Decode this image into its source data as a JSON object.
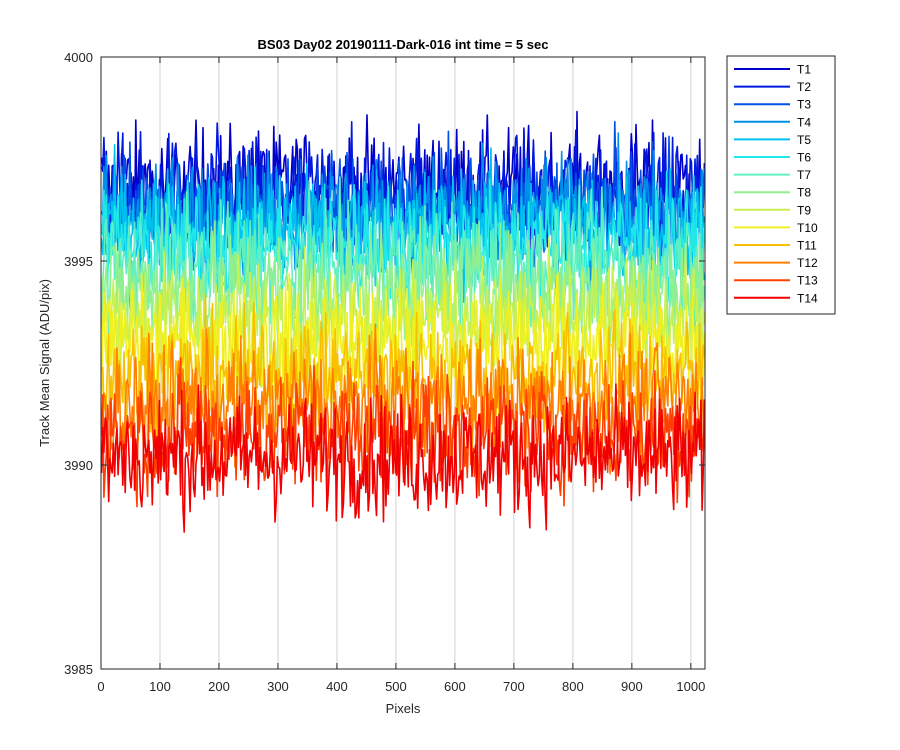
{
  "chart_data": {
    "type": "line",
    "title": "BS03 Day02 20190111-Dark-016 int time = 5 sec",
    "xlabel": "Pixels",
    "ylabel": "Track Mean Signal (ADU/pix)",
    "xlim": [
      0,
      1024
    ],
    "ylim": [
      3985,
      4000
    ],
    "xticks": [
      0,
      100,
      200,
      300,
      400,
      500,
      600,
      700,
      800,
      900,
      1000
    ],
    "yticks": [
      3985,
      3990,
      3995,
      4000
    ],
    "xgrid": true,
    "ygrid": false,
    "legend_position": "outside-top-right",
    "noise_amplitude": 1.6,
    "series": [
      {
        "name": "T1",
        "color": "#0000c8",
        "mean": 3996.8
      },
      {
        "name": "T2",
        "color": "#0018e0",
        "mean": 3996.6
      },
      {
        "name": "T3",
        "color": "#0050e8",
        "mean": 3996.3
      },
      {
        "name": "T4",
        "color": "#0090e8",
        "mean": 3996.1
      },
      {
        "name": "T5",
        "color": "#00c0f0",
        "mean": 3995.8
      },
      {
        "name": "T6",
        "color": "#20e8e8",
        "mean": 3995.4
      },
      {
        "name": "T7",
        "color": "#60f0c0",
        "mean": 3994.9
      },
      {
        "name": "T8",
        "color": "#90f090",
        "mean": 3994.3
      },
      {
        "name": "T9",
        "color": "#c8f050",
        "mean": 3993.6
      },
      {
        "name": "T10",
        "color": "#f0f020",
        "mean": 3993.0
      },
      {
        "name": "T11",
        "color": "#f8c000",
        "mean": 3992.2
      },
      {
        "name": "T12",
        "color": "#ff8000",
        "mean": 3991.5
      },
      {
        "name": "T13",
        "color": "#ff4000",
        "mean": 3990.8
      },
      {
        "name": "T14",
        "color": "#f00000",
        "mean": 3990.2
      }
    ]
  }
}
